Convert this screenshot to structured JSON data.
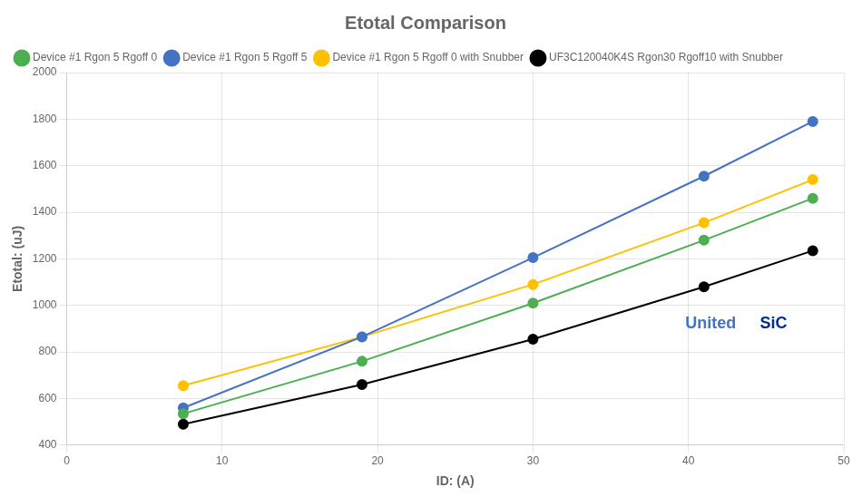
{
  "chart_data": {
    "type": "line",
    "title": "Etotal Comparison",
    "x_label": "ID: (A)",
    "y_label": "Etotal: (uJ)",
    "xlim": [
      0,
      50
    ],
    "ylim": [
      400,
      2000
    ],
    "xticks": [
      0,
      10,
      20,
      30,
      40,
      50
    ],
    "yticks": [
      400,
      600,
      800,
      1000,
      1200,
      1400,
      1600,
      1800,
      2000
    ],
    "grid": true,
    "legend": "upper left",
    "x": [
      7.5,
      19,
      30,
      41,
      48
    ],
    "series": [
      {
        "name": "Device #1 Rgon 5 Rgoff 0",
        "color": "#4CAF50",
        "marker": "circle",
        "values": [
          535,
          760,
          1010,
          1280,
          1460
        ]
      },
      {
        "name": "Device #1 Rgon 5 Rgoff 5",
        "color": "#4472C4",
        "marker": "circle",
        "values": [
          560,
          865,
          1205,
          1555,
          1790
        ]
      },
      {
        "name": "Device #1 Rgon 5 Rgoff 0 with Snubber",
        "color": "#FFC000",
        "marker": "circle",
        "values": [
          655,
          865,
          1090,
          1355,
          1540
        ]
      },
      {
        "name": "UF3C120040K4S Rgon30 Rgoff10 with Snubber",
        "color": "#000000",
        "marker": "circle",
        "values": [
          490,
          660,
          855,
          1080,
          1235
        ]
      }
    ],
    "annotations": [
      {
        "text": "United",
        "x": 39.8,
        "y": 920,
        "color": "#4472C4"
      },
      {
        "text": "SiC",
        "x": 44.6,
        "y": 920,
        "color": "#003087"
      }
    ]
  }
}
